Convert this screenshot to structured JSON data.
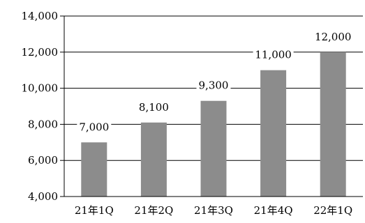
{
  "chart_data": {
    "type": "bar",
    "categories": [
      "21年1Q",
      "21年2Q",
      "21年3Q",
      "21年4Q",
      "22年1Q"
    ],
    "values": [
      7000,
      8100,
      9300,
      11000,
      12000
    ],
    "value_labels": [
      "7,000",
      "8,100",
      "9,300",
      "11,000",
      "12,000"
    ],
    "y_ticks": [
      4000,
      6000,
      8000,
      10000,
      12000,
      14000
    ],
    "y_tick_labels": [
      "4,000",
      "6,000",
      "8,000",
      "10,000",
      "12,000",
      "14,000"
    ],
    "ylim": [
      4000,
      14000
    ],
    "grid": true,
    "legend": "none",
    "bar_color": "#8c8c8c",
    "axis_color": "#000000",
    "title": "",
    "xlabel": "",
    "ylabel": ""
  }
}
